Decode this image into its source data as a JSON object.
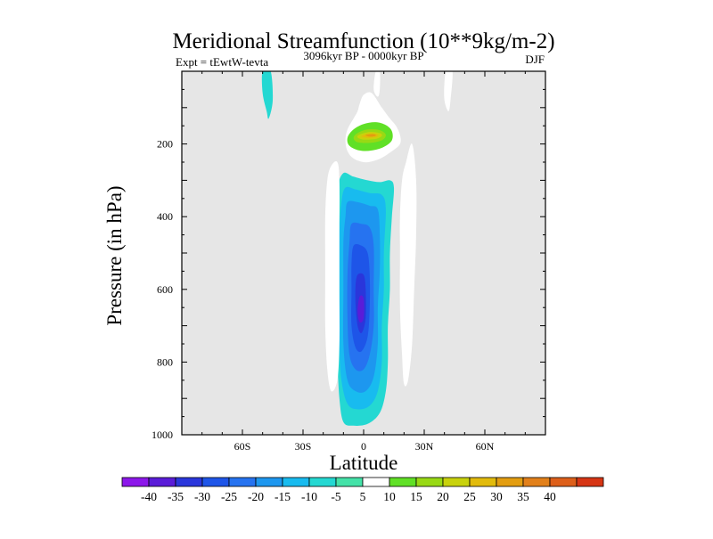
{
  "chart_data": {
    "type": "contour",
    "title": "Meridional Streamfunction (10**9kg/m-2)",
    "left_string": "Expt = tEwtW-tevta",
    "center_string": "3096kyr BP - 0000kyr BP",
    "right_string": "DJF",
    "xlabel": "Latitude",
    "ylabel": "Pressure (in hPa)",
    "xlim": [
      -90,
      90
    ],
    "ylim": [
      1000,
      0
    ],
    "x_ticks": [
      {
        "value": -60,
        "label": "60S"
      },
      {
        "value": -30,
        "label": "30S"
      },
      {
        "value": 0,
        "label": "0"
      },
      {
        "value": 30,
        "label": "30N"
      },
      {
        "value": 60,
        "label": "60N"
      }
    ],
    "y_ticks": [
      {
        "value": 200,
        "label": "200"
      },
      {
        "value": 400,
        "label": "400"
      },
      {
        "value": 600,
        "label": "600"
      },
      {
        "value": 800,
        "label": "800"
      },
      {
        "value": 1000,
        "label": "1000"
      }
    ],
    "background_color": "#e6e6e6",
    "colorbar": {
      "labels": [
        "-40",
        "-35",
        "-30",
        "-25",
        "-20",
        "-15",
        "-10",
        "-5",
        "5",
        "10",
        "15",
        "20",
        "25",
        "30",
        "35",
        "40"
      ],
      "colors": [
        "#8c17ea",
        "#5a1cd8",
        "#2a36db",
        "#1e55e8",
        "#2673f0",
        "#1d97ef",
        "#18bbef",
        "#24d8d2",
        "#44e2a8",
        "#ffffff",
        "#60e026",
        "#98d914",
        "#c8d20c",
        "#e2bb0c",
        "#e39d10",
        "#e2801a",
        "#dd5f1a",
        "#d63514"
      ]
    },
    "contours": [
      {
        "name": "Positive cell (upper, 0-15N, ~200 hPa)",
        "points": [
          [
            4,
            60
          ],
          [
            9,
            100
          ],
          [
            13,
            130
          ],
          [
            16,
            150
          ],
          [
            18,
            175
          ],
          [
            18,
            200
          ],
          [
            14,
            220
          ],
          [
            9,
            238
          ],
          [
            4,
            248
          ],
          [
            0,
            250
          ],
          [
            -5,
            240
          ],
          [
            -8,
            220
          ],
          [
            -9,
            190
          ],
          [
            -8,
            160
          ],
          [
            -5,
            130
          ],
          [
            -3,
            110
          ],
          [
            -2,
            90
          ],
          [
            0,
            65
          ]
        ],
        "levels": [
          {
            "value": 5,
            "points": [
              [
                4,
                60
              ],
              [
                9,
                100
              ],
              [
                13,
                130
              ],
              [
                16,
                150
              ],
              [
                18,
                175
              ],
              [
                18,
                200
              ],
              [
                14,
                220
              ],
              [
                9,
                238
              ],
              [
                4,
                248
              ],
              [
                0,
                250
              ],
              [
                -5,
                240
              ],
              [
                -8,
                220
              ],
              [
                -9,
                190
              ],
              [
                -8,
                160
              ],
              [
                -5,
                130
              ],
              [
                -3,
                110
              ],
              [
                -2,
                90
              ],
              [
                0,
                65
              ]
            ]
          },
          {
            "value": 10,
            "points": [
              [
                -5,
                160
              ],
              [
                0,
                145
              ],
              [
                6,
                140
              ],
              [
                11,
                148
              ],
              [
                14,
                165
              ],
              [
                14,
                190
              ],
              [
                10,
                208
              ],
              [
                4,
                218
              ],
              [
                -2,
                218
              ],
              [
                -7,
                205
              ],
              [
                -8,
                183
              ]
            ]
          },
          {
            "value": 15,
            "points": [
              [
                -3,
                170
              ],
              [
                2,
                160
              ],
              [
                8,
                162
              ],
              [
                11,
                175
              ],
              [
                9,
                190
              ],
              [
                3,
                197
              ],
              [
                -3,
                195
              ],
              [
                -5,
                183
              ]
            ]
          },
          {
            "value": 20,
            "points": [
              [
                -2,
                174
              ],
              [
                3,
                167
              ],
              [
                8,
                170
              ],
              [
                9,
                178
              ],
              [
                6,
                186
              ],
              [
                0,
                188
              ],
              [
                -3,
                182
              ]
            ]
          },
          {
            "value": 25,
            "points": [
              [
                0,
                176
              ],
              [
                4,
                171
              ],
              [
                7,
                175
              ],
              [
                6,
                181
              ],
              [
                2,
                183
              ],
              [
                -1,
                180
              ]
            ]
          },
          {
            "value": 30,
            "points": [
              [
                1,
                175
              ],
              [
                5,
                173
              ],
              [
                6,
                177
              ],
              [
                3,
                180
              ]
            ]
          }
        ]
      },
      {
        "name": "Negative cell (equatorial, 950 hPa to 300 hPa)",
        "levels": [
          {
            "value": -5,
            "points": [
              [
                -10,
                280
              ],
              [
                -5,
                290
              ],
              [
                2,
                300
              ],
              [
                8,
                305
              ],
              [
                13,
                300
              ],
              [
                15,
                320
              ],
              [
                14,
                400
              ],
              [
                13,
                500
              ],
              [
                13,
                600
              ],
              [
                12,
                700
              ],
              [
                12,
                800
              ],
              [
                11,
                880
              ],
              [
                8,
                940
              ],
              [
                2,
                970
              ],
              [
                -5,
                975
              ],
              [
                -10,
                965
              ],
              [
                -12,
                900
              ],
              [
                -13,
                800
              ],
              [
                -14,
                700
              ],
              [
                -14,
                600
              ],
              [
                -14,
                500
              ],
              [
                -14,
                400
              ],
              [
                -13,
                320
              ]
            ]
          },
          {
            "value": -10,
            "points": [
              [
                -9,
                320
              ],
              [
                -4,
                325
              ],
              [
                3,
                335
              ],
              [
                9,
                340
              ],
              [
                11,
                380
              ],
              [
                10,
                500
              ],
              [
                10,
                600
              ],
              [
                9,
                700
              ],
              [
                9,
                800
              ],
              [
                7,
                880
              ],
              [
                3,
                920
              ],
              [
                -3,
                930
              ],
              [
                -8,
                915
              ],
              [
                -11,
                850
              ],
              [
                -12,
                750
              ],
              [
                -12,
                600
              ],
              [
                -12,
                450
              ],
              [
                -11,
                360
              ]
            ]
          },
          {
            "value": -15,
            "points": [
              [
                -8,
                360
              ],
              [
                -3,
                360
              ],
              [
                3,
                370
              ],
              [
                7,
                380
              ],
              [
                8,
                450
              ],
              [
                8,
                550
              ],
              [
                7,
                650
              ],
              [
                7,
                750
              ],
              [
                5,
                840
              ],
              [
                1,
                880
              ],
              [
                -4,
                880
              ],
              [
                -8,
                850
              ],
              [
                -10,
                750
              ],
              [
                -10,
                600
              ],
              [
                -10,
                470
              ],
              [
                -9,
                400
              ]
            ]
          },
          {
            "value": -20,
            "points": [
              [
                -6,
                420
              ],
              [
                -1,
                420
              ],
              [
                3,
                430
              ],
              [
                5,
                480
              ],
              [
                5,
                600
              ],
              [
                5,
                700
              ],
              [
                3,
                780
              ],
              [
                0,
                820
              ],
              [
                -4,
                820
              ],
              [
                -7,
                780
              ],
              [
                -8,
                680
              ],
              [
                -8,
                560
              ],
              [
                -7,
                470
              ]
            ]
          },
          {
            "value": -25,
            "points": [
              [
                -5,
                480
              ],
              [
                -1,
                480
              ],
              [
                2,
                500
              ],
              [
                3,
                560
              ],
              [
                3,
                650
              ],
              [
                2,
                730
              ],
              [
                -1,
                770
              ],
              [
                -4,
                760
              ],
              [
                -6,
                700
              ],
              [
                -6,
                600
              ],
              [
                -6,
                530
              ]
            ]
          },
          {
            "value": -30,
            "points": [
              [
                -3,
                560
              ],
              [
                0,
                560
              ],
              [
                1,
                600
              ],
              [
                1,
                680
              ],
              [
                -1,
                720
              ],
              [
                -3,
                700
              ],
              [
                -4,
                640
              ],
              [
                -4,
                590
              ]
            ]
          },
          {
            "value": -35,
            "points": [
              [
                -2,
                620
              ],
              [
                0,
                625
              ],
              [
                0,
                680
              ],
              [
                -2,
                690
              ],
              [
                -3,
                660
              ]
            ]
          }
        ]
      },
      {
        "name": "Positive band (west, ~12S)",
        "levels": [
          {
            "value": 5,
            "points": [
              [
                -16,
                260
              ],
              [
                -13,
                250
              ],
              [
                -12,
                300
              ],
              [
                -12,
                450
              ],
              [
                -12,
                600
              ],
              [
                -12,
                750
              ],
              [
                -13,
                850
              ],
              [
                -16,
                880
              ],
              [
                -18,
                820
              ],
              [
                -19,
                700
              ],
              [
                -19,
                550
              ],
              [
                -19,
                400
              ],
              [
                -18,
                300
              ]
            ]
          }
        ]
      },
      {
        "name": "Positive band (east, ~23N)",
        "levels": [
          {
            "value": 5,
            "points": [
              [
                19,
                300
              ],
              [
                21,
                250
              ],
              [
                24,
                200
              ],
              [
                26,
                300
              ],
              [
                26,
                450
              ],
              [
                25,
                600
              ],
              [
                24,
                750
              ],
              [
                22,
                850
              ],
              [
                20,
                860
              ],
              [
                19,
                780
              ],
              [
                18,
                650
              ],
              [
                18,
                500
              ],
              [
                18,
                400
              ]
            ]
          }
        ]
      },
      {
        "name": "Negative tongue (top, ~45S)",
        "levels": [
          {
            "value": -5,
            "points": [
              [
                -50,
                0
              ],
              [
                -46,
                0
              ],
              [
                -45,
                80
              ],
              [
                -47,
                130
              ],
              [
                -48,
                110
              ],
              [
                -50,
                60
              ]
            ]
          }
        ]
      },
      {
        "name": "Positive tongue (top, ~42N)",
        "levels": [
          {
            "value": 5,
            "points": [
              [
                41,
                0
              ],
              [
                44,
                0
              ],
              [
                43,
                80
              ],
              [
                42,
                110
              ],
              [
                40,
                80
              ],
              [
                40,
                30
              ]
            ]
          }
        ]
      },
      {
        "name": "Positive tongue (top, equator)",
        "levels": [
          {
            "value": 5,
            "points": [
              [
                6,
                0
              ],
              [
                8,
                0
              ],
              [
                8,
                50
              ],
              [
                7,
                70
              ],
              [
                5,
                50
              ]
            ]
          }
        ]
      }
    ]
  }
}
